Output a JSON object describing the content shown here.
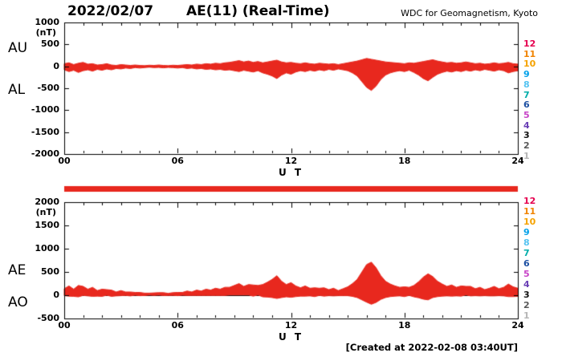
{
  "header": {
    "date": "2022/02/07",
    "title": "AE(11) (Real-Time)",
    "org": "WDC for Geomagnetism, Kyoto"
  },
  "footer": {
    "created_at": "[Created at 2022-02-08 03:40UT]"
  },
  "colors": {
    "series": "#e8281e",
    "station_bar": "#e8281e",
    "axis": "#000000",
    "background": "#ffffff"
  },
  "stations": [
    {
      "label": "12",
      "color": "#e5004f"
    },
    {
      "label": "11",
      "color": "#f08300"
    },
    {
      "label": "10",
      "color": "#f5a200"
    },
    {
      "label": "9",
      "color": "#00a0e9"
    },
    {
      "label": "8",
      "color": "#54c3f1"
    },
    {
      "label": "7",
      "color": "#00ada9"
    },
    {
      "label": "6",
      "color": "#1d50a2"
    },
    {
      "label": "5",
      "color": "#c743c7"
    },
    {
      "label": "4",
      "color": "#6a3fb5"
    },
    {
      "label": "3",
      "color": "#111111"
    },
    {
      "label": "2",
      "color": "#595959"
    },
    {
      "label": "1",
      "color": "#b5b5b5"
    }
  ],
  "chart_data": [
    {
      "type": "area",
      "title": "AU / AL auroral electrojet indices (upper/lower envelope, red fill between)",
      "left_labels": [
        "AU",
        "AL"
      ],
      "ylabel": "(nT)",
      "xlabel": "U T",
      "ylim": [
        -2000,
        1000
      ],
      "yticks": [
        1000,
        500,
        0,
        -500,
        -1000,
        -1500,
        -2000
      ],
      "xlim_hours": [
        0,
        24
      ],
      "xticks": [
        0,
        6,
        12,
        18,
        24
      ],
      "xtick_labels": [
        "00",
        "06",
        "12",
        "18",
        "24"
      ],
      "x_step_hours": 0.25,
      "grid": false,
      "series": [
        {
          "name": "AU",
          "values": [
            60,
            80,
            40,
            70,
            90,
            50,
            60,
            30,
            40,
            60,
            30,
            20,
            40,
            30,
            20,
            30,
            20,
            15,
            25,
            20,
            30,
            20,
            15,
            25,
            20,
            30,
            40,
            30,
            50,
            40,
            60,
            50,
            70,
            60,
            80,
            90,
            110,
            130,
            100,
            120,
            90,
            110,
            80,
            100,
            120,
            140,
            100,
            80,
            90,
            70,
            60,
            80,
            60,
            50,
            70,
            60,
            50,
            60,
            40,
            60,
            80,
            100,
            120,
            150,
            180,
            160,
            140,
            120,
            100,
            90,
            80,
            70,
            60,
            80,
            70,
            90,
            110,
            130,
            150,
            120,
            100,
            80,
            90,
            70,
            80,
            100,
            80,
            60,
            70,
            50,
            60,
            80,
            60,
            70,
            90,
            60,
            50
          ]
        },
        {
          "name": "AL",
          "values": [
            -80,
            -120,
            -90,
            -140,
            -100,
            -80,
            -110,
            -70,
            -90,
            -60,
            -80,
            -50,
            -60,
            -40,
            -50,
            -30,
            -40,
            -30,
            -20,
            -30,
            -25,
            -35,
            -25,
            -30,
            -40,
            -30,
            -50,
            -40,
            -60,
            -50,
            -70,
            -60,
            -80,
            -70,
            -90,
            -80,
            -100,
            -120,
            -90,
            -110,
            -130,
            -100,
            -150,
            -180,
            -220,
            -280,
            -200,
            -150,
            -180,
            -130,
            -100,
            -120,
            -90,
            -110,
            -80,
            -100,
            -70,
            -90,
            -60,
            -80,
            -100,
            -150,
            -220,
            -350,
            -480,
            -550,
            -450,
            -300,
            -200,
            -150,
            -120,
            -100,
            -120,
            -90,
            -140,
            -200,
            -280,
            -330,
            -250,
            -180,
            -140,
            -110,
            -130,
            -100,
            -120,
            -90,
            -110,
            -80,
            -100,
            -70,
            -90,
            -110,
            -80,
            -100,
            -150,
            -120,
            -100
          ]
        }
      ]
    },
    {
      "type": "area",
      "title": "AE / AO auroral electrojet indices (upper/lower envelope, red fill between)",
      "left_labels": [
        "AE",
        "AO"
      ],
      "ylabel": "(nT)",
      "xlabel": "U T",
      "ylim": [
        -500,
        2000
      ],
      "yticks": [
        2000,
        1500,
        1000,
        500,
        0,
        -500
      ],
      "xlim_hours": [
        0,
        24
      ],
      "xticks": [
        0,
        6,
        12,
        18,
        24
      ],
      "xtick_labels": [
        "00",
        "06",
        "12",
        "18",
        "24"
      ],
      "x_step_hours": 0.25,
      "grid": false,
      "series": [
        {
          "name": "AE",
          "values": [
            140,
            200,
            130,
            210,
            190,
            130,
            170,
            100,
            130,
            120,
            110,
            70,
            100,
            70,
            70,
            60,
            60,
            45,
            45,
            50,
            55,
            55,
            40,
            55,
            60,
            60,
            90,
            70,
            110,
            90,
            130,
            110,
            150,
            130,
            170,
            170,
            210,
            250,
            190,
            230,
            220,
            210,
            230,
            280,
            340,
            420,
            300,
            230,
            270,
            200,
            160,
            200,
            150,
            160,
            150,
            160,
            120,
            150,
            100,
            140,
            180,
            250,
            340,
            500,
            660,
            710,
            590,
            420,
            300,
            240,
            200,
            170,
            180,
            170,
            210,
            290,
            390,
            460,
            400,
            300,
            240,
            190,
            220,
            170,
            200,
            190,
            190,
            140,
            170,
            120,
            150,
            190,
            140,
            170,
            240,
            180,
            150
          ]
        },
        {
          "name": "AO",
          "values": [
            -10,
            -20,
            -25,
            -35,
            -5,
            -15,
            -25,
            -20,
            -25,
            0,
            -25,
            -15,
            -10,
            -5,
            -15,
            0,
            -10,
            -8,
            3,
            -5,
            3,
            -8,
            -5,
            -3,
            -10,
            0,
            -5,
            -5,
            -5,
            -5,
            -5,
            -5,
            -5,
            -5,
            -5,
            5,
            5,
            5,
            5,
            5,
            -20,
            5,
            -35,
            -40,
            -50,
            -70,
            -50,
            -35,
            -45,
            -30,
            -20,
            -20,
            -15,
            -30,
            -5,
            -20,
            -10,
            -15,
            -10,
            -10,
            -10,
            -25,
            -50,
            -100,
            -150,
            -195,
            -155,
            -90,
            -50,
            -30,
            -20,
            -15,
            -30,
            -5,
            -35,
            -55,
            -85,
            -100,
            -50,
            -30,
            -20,
            -15,
            -20,
            -15,
            -20,
            5,
            -15,
            -10,
            -15,
            -10,
            -15,
            -15,
            -10,
            -15,
            -30,
            -30,
            -25
          ]
        }
      ]
    }
  ]
}
